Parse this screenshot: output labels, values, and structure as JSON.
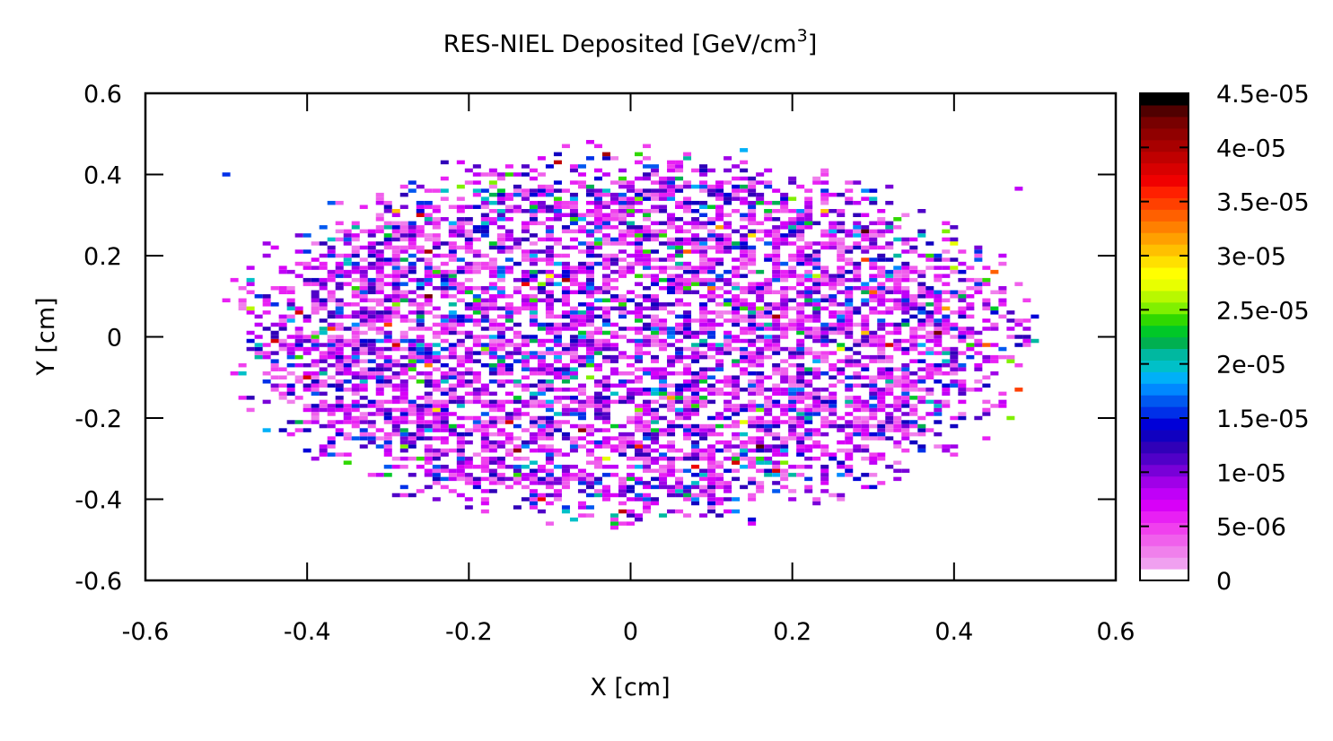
{
  "chart_data": {
    "type": "heatmap",
    "title": "RES-NIEL Deposited [GeV/cm",
    "title_superscript": "3",
    "title_suffix": "]",
    "xlabel": "X [cm]",
    "ylabel": "Y [cm]",
    "xlim": [
      -0.6,
      0.6
    ],
    "ylim": [
      -0.6,
      0.6
    ],
    "x_ticks": [
      "-0.6",
      "-0.4",
      "-0.2",
      "0",
      "0.2",
      "0.4",
      "0.6"
    ],
    "y_ticks": [
      "0.6",
      "0.4",
      "0.2",
      "0",
      "-0.2",
      "-0.4",
      "-0.6"
    ],
    "colorbar": {
      "range": [
        0,
        4.5e-05
      ],
      "tick_labels": [
        "4.5e-05",
        "4e-05",
        "3.5e-05",
        "3e-05",
        "2.5e-05",
        "2e-05",
        "1.5e-05",
        "1e-05",
        "5e-06",
        "0"
      ],
      "levels": [
        "#ffffff",
        "#f0a0f0",
        "#f080ec",
        "#f060ec",
        "#f040ee",
        "#e820f4",
        "#d800f8",
        "#c000f8",
        "#a000e8",
        "#7800d8",
        "#5000c8",
        "#3000b8",
        "#1000c0",
        "#0000d8",
        "#0030e8",
        "#0058f0",
        "#0088ff",
        "#00b0f8",
        "#00c0c8",
        "#00b8a0",
        "#00b050",
        "#00c828",
        "#30d800",
        "#80f000",
        "#b8f800",
        "#e8ff00",
        "#ffff00",
        "#ffe000",
        "#ffc000",
        "#ffa000",
        "#ff8000",
        "#ff6000",
        "#ff4000",
        "#ff2000",
        "#f00000",
        "#d80000",
        "#c00000",
        "#a80000",
        "#900000",
        "#780000",
        "#500000",
        "#000000"
      ]
    },
    "distribution": {
      "center": [
        0.0,
        0.0
      ],
      "radius_x": 0.48,
      "radius_y": 0.45,
      "bin_size": 0.01,
      "occupancy": 0.62,
      "isolated_bins": [
        [
          -0.5,
          0.4,
          1.55e-05
        ],
        [
          0.48,
          0.365,
          7.5e-06
        ]
      ]
    },
    "grid": false,
    "legend": "right-colorbar"
  }
}
